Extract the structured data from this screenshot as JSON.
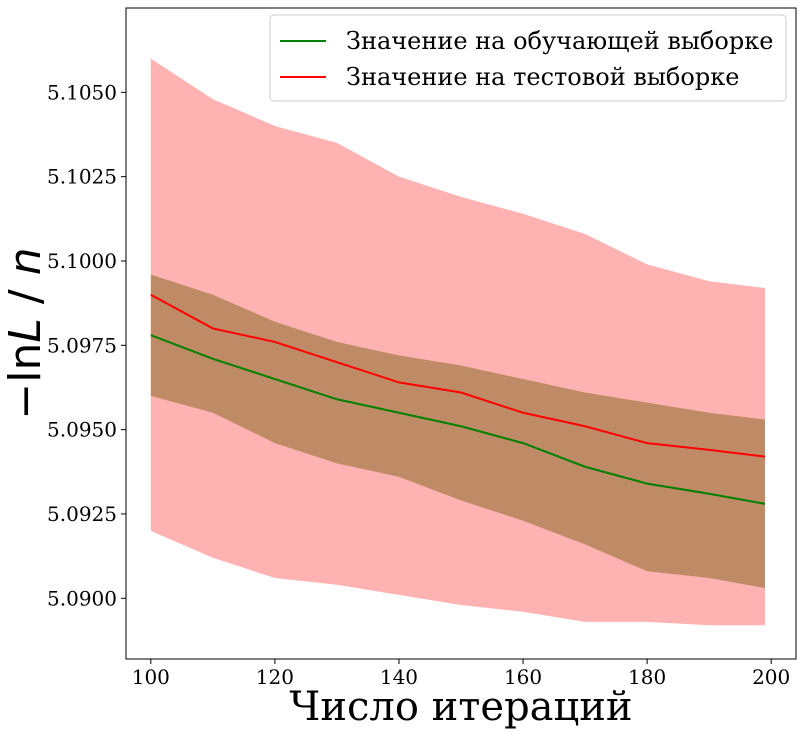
{
  "chart_data": {
    "type": "line",
    "xlabel": "Число итераций",
    "ylabel_parts": [
      "−ln",
      "L",
      " / ",
      "n"
    ],
    "xlim": [
      96,
      204
    ],
    "ylim": [
      5.0882,
      5.1075
    ],
    "xticks": [
      100,
      120,
      140,
      160,
      180,
      200
    ],
    "yticks": [
      5.09,
      5.0925,
      5.095,
      5.0975,
      5.1,
      5.1025,
      5.105
    ],
    "ytick_labels": [
      "5.0900",
      "5.0925",
      "5.0950",
      "5.0975",
      "5.1000",
      "5.1025",
      "5.1050"
    ],
    "grid": false,
    "legend_position": "top-right",
    "x": [
      100,
      110,
      120,
      130,
      140,
      150,
      160,
      170,
      180,
      190,
      199
    ],
    "series": [
      {
        "name": "Значение на обучающей выборке",
        "color": "#008000",
        "values": [
          5.0978,
          5.0971,
          5.0965,
          5.0959,
          5.0955,
          5.0951,
          5.0946,
          5.0939,
          5.0934,
          5.0931,
          5.0928
        ],
        "band_lower": [
          5.096,
          5.0955,
          5.0946,
          5.094,
          5.0936,
          5.0929,
          5.0923,
          5.0916,
          5.0908,
          5.0906,
          5.0903
        ],
        "band_upper": [
          5.0996,
          5.099,
          5.0982,
          5.0976,
          5.0972,
          5.0969,
          5.0965,
          5.0961,
          5.0958,
          5.0955,
          5.0953
        ],
        "band_color": "#8b6b2a"
      },
      {
        "name": "Значение на тестовой выборке",
        "color": "#ff0000",
        "values": [
          5.099,
          5.098,
          5.0976,
          5.097,
          5.0964,
          5.0961,
          5.0955,
          5.0951,
          5.0946,
          5.0944,
          5.0942
        ],
        "band_lower": [
          5.092,
          5.0912,
          5.0906,
          5.0904,
          5.0901,
          5.0898,
          5.0896,
          5.0893,
          5.0893,
          5.0892,
          5.0892
        ],
        "band_upper": [
          5.106,
          5.1048,
          5.104,
          5.1035,
          5.1025,
          5.1019,
          5.1014,
          5.1008,
          5.0999,
          5.0994,
          5.0992
        ],
        "band_color": "#ff6666"
      }
    ]
  }
}
